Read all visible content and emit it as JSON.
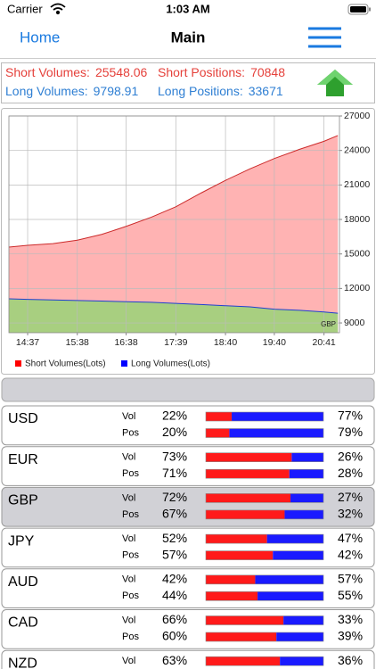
{
  "status": {
    "carrier": "Carrier",
    "time": "1:03 AM"
  },
  "nav": {
    "back": "Home",
    "title": "Main"
  },
  "summary": {
    "items": [
      {
        "label": "Short Volumes:",
        "value": 25548.06,
        "color": "#e5413b"
      },
      {
        "label": "Short Positions:",
        "value": 70848,
        "color": "#e5413b"
      },
      {
        "label": "Long Volumes:",
        "value": 9798.91,
        "color": "#2f7fd3"
      },
      {
        "label": "Long Positions:",
        "value": 33671,
        "color": "#2f7fd3"
      }
    ]
  },
  "chart_data": {
    "type": "area",
    "annotation": "GBP",
    "x": [
      854,
      877,
      908,
      938,
      968,
      998,
      1029,
      1059,
      1090,
      1120,
      1150,
      1180,
      1211,
      1241,
      1258
    ],
    "series": [
      {
        "name": "Short Volumes(Lots)",
        "color": "#ff0000",
        "line": "#cc2a2a",
        "fill": "#ffb3b3",
        "values": [
          15600,
          15750,
          15900,
          16200,
          16700,
          17400,
          18200,
          19100,
          20300,
          21400,
          22400,
          23300,
          24100,
          24800,
          25300
        ]
      },
      {
        "name": "Long Volumes(Lots)",
        "color": "#0000ff",
        "line": "#1f3fd0",
        "fill": "#a8cf80",
        "values": [
          11100,
          11050,
          11000,
          10950,
          10900,
          10850,
          10800,
          10700,
          10600,
          10500,
          10400,
          10200,
          10100,
          9950,
          9850
        ]
      }
    ],
    "xlim": [
      854,
      1260
    ],
    "xticks": [
      {
        "value": 877,
        "label": "14:37"
      },
      {
        "value": 938,
        "label": "15:38"
      },
      {
        "value": 998,
        "label": "16:38"
      },
      {
        "value": 1059,
        "label": "17:39"
      },
      {
        "value": 1120,
        "label": "18:40"
      },
      {
        "value": 1180,
        "label": "19:40"
      },
      {
        "value": 1241,
        "label": "20:41"
      }
    ],
    "ylim": [
      8150,
      27000
    ],
    "yticks": [
      9000,
      12000,
      15000,
      18000,
      21000,
      24000,
      27000
    ],
    "grid": true
  },
  "table": {
    "rows": [
      {
        "name": "USD",
        "lines": [
          {
            "label": "Vol",
            "short": 22,
            "short_label": "22%",
            "long": 77,
            "long_label": "77%"
          },
          {
            "label": "Pos",
            "short": 20,
            "short_label": "20%",
            "long": 79,
            "long_label": "79%"
          }
        ]
      },
      {
        "name": "EUR",
        "lines": [
          {
            "label": "Vol",
            "short": 73,
            "short_label": "73%",
            "long": 26,
            "long_label": "26%"
          },
          {
            "label": "Pos",
            "short": 71,
            "short_label": "71%",
            "long": 28,
            "long_label": "28%"
          }
        ]
      },
      {
        "name": "GBP",
        "highlighted": true,
        "lines": [
          {
            "label": "Vol",
            "short": 72,
            "short_label": "72%",
            "long": 27,
            "long_label": "27%"
          },
          {
            "label": "Pos",
            "short": 67,
            "short_label": "67%",
            "long": 32,
            "long_label": "32%"
          }
        ]
      },
      {
        "name": "JPY",
        "lines": [
          {
            "label": "Vol",
            "short": 52,
            "short_label": "52%",
            "long": 47,
            "long_label": "47%"
          },
          {
            "label": "Pos",
            "short": 57,
            "short_label": "57%",
            "long": 42,
            "long_label": "42%"
          }
        ]
      },
      {
        "name": "AUD",
        "lines": [
          {
            "label": "Vol",
            "short": 42,
            "short_label": "42%",
            "long": 57,
            "long_label": "57%"
          },
          {
            "label": "Pos",
            "short": 44,
            "short_label": "44%",
            "long": 55,
            "long_label": "55%"
          }
        ]
      },
      {
        "name": "CAD",
        "lines": [
          {
            "label": "Vol",
            "short": 66,
            "short_label": "66%",
            "long": 33,
            "long_label": "33%"
          },
          {
            "label": "Pos",
            "short": 60,
            "short_label": "60%",
            "long": 39,
            "long_label": "39%"
          }
        ]
      },
      {
        "name": "NZD",
        "lines": [
          {
            "label": "Vol",
            "short": 63,
            "short_label": "63%",
            "long": 36,
            "long_label": "36%"
          }
        ]
      }
    ]
  }
}
